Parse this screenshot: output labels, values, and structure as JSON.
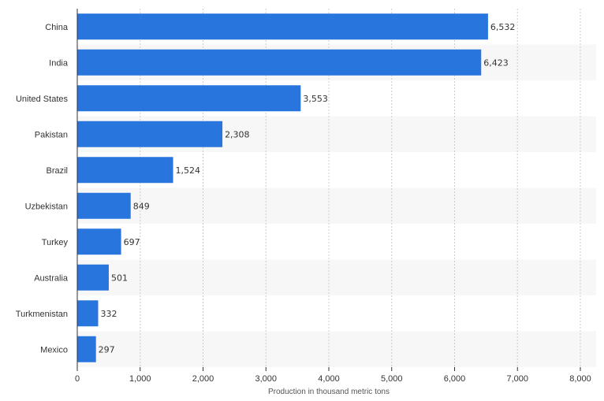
{
  "chart_data": {
    "type": "bar",
    "orientation": "horizontal",
    "categories": [
      "China",
      "India",
      "United States",
      "Pakistan",
      "Brazil",
      "Uzbekistan",
      "Turkey",
      "Australia",
      "Turkmenistan",
      "Mexico"
    ],
    "values": [
      6532,
      6423,
      3553,
      2308,
      1524,
      849,
      697,
      501,
      332,
      297
    ],
    "value_labels": [
      "6,532",
      "6,423",
      "3,553",
      "2,308",
      "1,524",
      "849",
      "697",
      "501",
      "332",
      "297"
    ],
    "xlabel": "Production in thousand metric tons",
    "ylabel": "",
    "xlim": [
      0,
      8000
    ],
    "ticks": [
      0,
      1000,
      2000,
      3000,
      4000,
      5000,
      6000,
      7000,
      8000
    ],
    "tick_labels": [
      "0",
      "1,000",
      "2,000",
      "3,000",
      "4,000",
      "5,000",
      "6,000",
      "7,000",
      "8,000"
    ],
    "grid": "vertical dashed",
    "legend": "none"
  },
  "colors": {
    "bar": "#2876dd",
    "stripe": "#f7f7f7",
    "grid": "#cccccc",
    "axis": "#333333"
  }
}
